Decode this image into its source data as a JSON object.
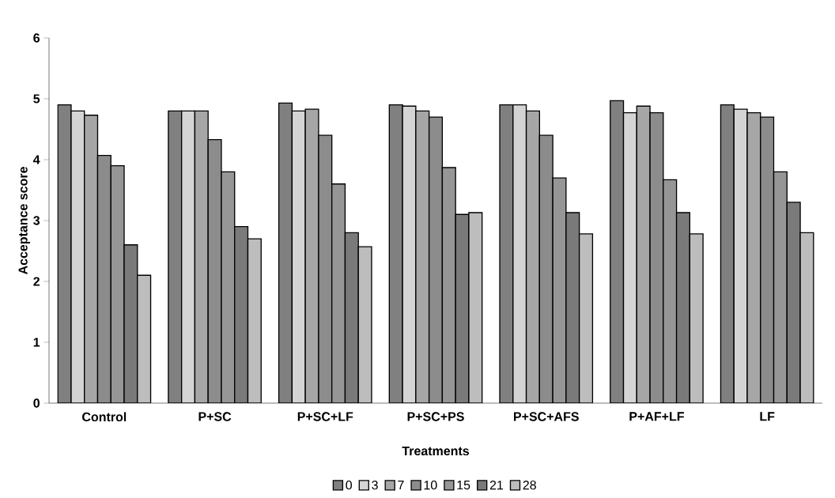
{
  "chart_data": {
    "type": "bar",
    "xlabel": "Treatments",
    "ylabel": "Acceptance score",
    "categories": [
      "Control",
      "P+SC",
      "P+SC+LF",
      "P+SC+PS",
      "P+SC+AFS",
      "P+AF+LF",
      "LF"
    ],
    "series": [
      {
        "name": "0",
        "color": "#808080",
        "values": [
          4.9,
          4.8,
          4.93,
          4.9,
          4.9,
          4.97,
          4.9
        ]
      },
      {
        "name": "3",
        "color": "#d4d4d4",
        "values": [
          4.8,
          4.8,
          4.8,
          4.88,
          4.9,
          4.77,
          4.83
        ]
      },
      {
        "name": "7",
        "color": "#a6a6a6",
        "values": [
          4.73,
          4.8,
          4.83,
          4.8,
          4.8,
          4.88,
          4.77
        ]
      },
      {
        "name": "10",
        "color": "#8c8c8c",
        "values": [
          4.07,
          4.33,
          4.4,
          4.7,
          4.4,
          4.77,
          4.7
        ]
      },
      {
        "name": "15",
        "color": "#969696",
        "values": [
          3.9,
          3.8,
          3.6,
          3.87,
          3.7,
          3.67,
          3.8
        ]
      },
      {
        "name": "21",
        "color": "#7a7a7a",
        "values": [
          2.6,
          2.9,
          2.8,
          3.1,
          3.13,
          3.13,
          3.3
        ]
      },
      {
        "name": "28",
        "color": "#bdbdbd",
        "values": [
          2.1,
          2.7,
          2.57,
          3.13,
          2.78,
          2.78,
          2.8
        ]
      }
    ],
    "ylim": [
      0,
      6
    ],
    "yticks": [
      0,
      1,
      2,
      3,
      4,
      5,
      6
    ],
    "grid": false,
    "legend": "bottom"
  }
}
